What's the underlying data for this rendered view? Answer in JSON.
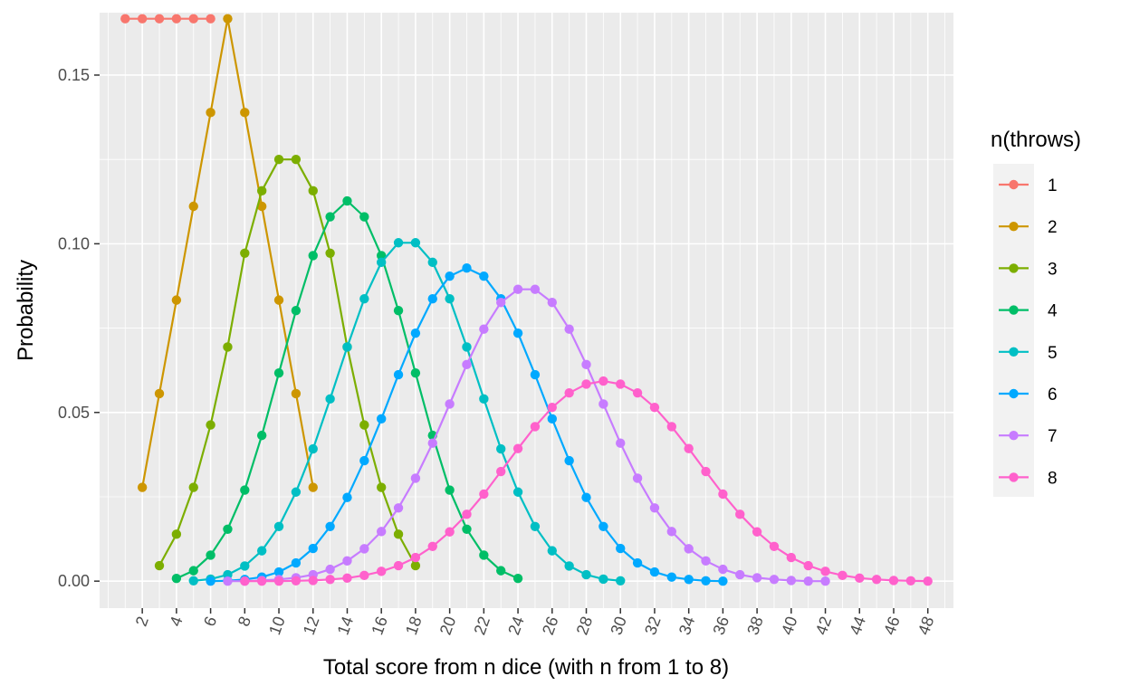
{
  "chart_data": {
    "type": "line",
    "title": "",
    "xlabel": "Total score from n dice (with n from 1 to 8)",
    "ylabel": "Probability",
    "xlim": [
      -0.5,
      49.5
    ],
    "ylim": [
      -0.008,
      0.1685
    ],
    "x_ticks": [
      2,
      4,
      6,
      8,
      10,
      12,
      14,
      16,
      18,
      20,
      22,
      24,
      26,
      28,
      30,
      32,
      34,
      36,
      38,
      40,
      42,
      44,
      46,
      48
    ],
    "y_ticks": [
      0.0,
      0.05,
      0.1,
      0.15
    ],
    "y_tick_labels": [
      "0.00",
      "0.05",
      "0.10",
      "0.15"
    ],
    "grid": true,
    "background": "#EBEBEB",
    "legend": {
      "title": "n(throws)",
      "position": "right"
    },
    "series": [
      {
        "name": "1",
        "color": "#F8766D",
        "x": [
          1,
          2,
          3,
          4,
          5,
          6
        ],
        "y": [
          0.1667,
          0.1667,
          0.1667,
          0.1667,
          0.1667,
          0.1667
        ]
      },
      {
        "name": "2",
        "color": "#CD9600",
        "x": [
          2,
          3,
          4,
          5,
          6,
          7,
          8,
          9,
          10,
          11,
          12
        ],
        "y": [
          0.0278,
          0.0556,
          0.0833,
          0.1111,
          0.1389,
          0.1667,
          0.1389,
          0.1111,
          0.0833,
          0.0556,
          0.0278
        ]
      },
      {
        "name": "3",
        "color": "#7CAE00",
        "x": [
          3,
          4,
          5,
          6,
          7,
          8,
          9,
          10,
          11,
          12,
          13,
          14,
          15,
          16,
          17,
          18
        ],
        "y": [
          0.0046,
          0.0139,
          0.0278,
          0.0463,
          0.0694,
          0.0972,
          0.1157,
          0.125,
          0.125,
          0.1157,
          0.0972,
          0.0694,
          0.0463,
          0.0278,
          0.0139,
          0.0046
        ]
      },
      {
        "name": "4",
        "color": "#00BE67",
        "x": [
          4,
          5,
          6,
          7,
          8,
          9,
          10,
          11,
          12,
          13,
          14,
          15,
          16,
          17,
          18,
          19,
          20,
          21,
          22,
          23,
          24
        ],
        "y": [
          0.0008,
          0.0031,
          0.0077,
          0.0154,
          0.027,
          0.0432,
          0.0617,
          0.0802,
          0.0965,
          0.108,
          0.1127,
          0.108,
          0.0965,
          0.0802,
          0.0617,
          0.0432,
          0.027,
          0.0154,
          0.0077,
          0.0031,
          0.0008
        ]
      },
      {
        "name": "5",
        "color": "#00BFC4",
        "x": [
          5,
          6,
          7,
          8,
          9,
          10,
          11,
          12,
          13,
          14,
          15,
          16,
          17,
          18,
          19,
          20,
          21,
          22,
          23,
          24,
          25,
          26,
          27,
          28,
          29,
          30
        ],
        "y": [
          0.0001,
          0.0006,
          0.0019,
          0.0045,
          0.009,
          0.0162,
          0.0264,
          0.0392,
          0.054,
          0.0694,
          0.0837,
          0.0945,
          0.1003,
          0.1003,
          0.0945,
          0.0837,
          0.0694,
          0.054,
          0.0392,
          0.0264,
          0.0162,
          0.009,
          0.0045,
          0.0019,
          0.0006,
          0.0001
        ]
      },
      {
        "name": "6",
        "color": "#00A9FF",
        "x": [
          6,
          7,
          8,
          9,
          10,
          11,
          12,
          13,
          14,
          15,
          16,
          17,
          18,
          19,
          20,
          21,
          22,
          23,
          24,
          25,
          26,
          27,
          28,
          29,
          30,
          31,
          32,
          33,
          34,
          35,
          36
        ],
        "y": [
          0.0,
          0.0001,
          0.0005,
          0.0012,
          0.0027,
          0.0054,
          0.0097,
          0.0162,
          0.0248,
          0.0357,
          0.0481,
          0.0612,
          0.0735,
          0.0837,
          0.0904,
          0.0928,
          0.0904,
          0.0837,
          0.0735,
          0.0612,
          0.0481,
          0.0357,
          0.0248,
          0.0162,
          0.0097,
          0.0054,
          0.0027,
          0.0012,
          0.0005,
          0.0001,
          0.0
        ]
      },
      {
        "name": "7",
        "color": "#C77CFF",
        "x": [
          7,
          8,
          9,
          10,
          11,
          12,
          13,
          14,
          15,
          16,
          17,
          18,
          19,
          20,
          21,
          22,
          23,
          24,
          25,
          26,
          27,
          28,
          29,
          30,
          31,
          32,
          33,
          34,
          35,
          36,
          37,
          38,
          39,
          40,
          41,
          42
        ],
        "y": [
          0.0,
          0.0,
          0.0002,
          0.0005,
          0.001,
          0.0019,
          0.0035,
          0.006,
          0.0096,
          0.0147,
          0.0217,
          0.0305,
          0.0409,
          0.0525,
          0.0642,
          0.0747,
          0.0826,
          0.0865,
          0.0865,
          0.0826,
          0.0747,
          0.0642,
          0.0525,
          0.0409,
          0.0305,
          0.0217,
          0.0147,
          0.0096,
          0.006,
          0.0035,
          0.0019,
          0.001,
          0.0005,
          0.0002,
          0.0,
          0.0
        ]
      },
      {
        "name": "8",
        "color": "#FF61CC",
        "x": [
          8,
          9,
          10,
          11,
          12,
          13,
          14,
          15,
          16,
          17,
          18,
          19,
          20,
          21,
          22,
          23,
          24,
          25,
          26,
          27,
          28,
          29,
          30,
          31,
          32,
          33,
          34,
          35,
          36,
          37,
          38,
          39,
          40,
          41,
          42,
          43,
          44,
          45,
          46,
          47,
          48
        ],
        "y": [
          0.0,
          0.0,
          0.0,
          0.0001,
          0.0002,
          0.0005,
          0.0009,
          0.0017,
          0.0029,
          0.0046,
          0.007,
          0.0103,
          0.0146,
          0.0198,
          0.0258,
          0.0325,
          0.0393,
          0.0458,
          0.0515,
          0.0558,
          0.0584,
          0.0593,
          0.0584,
          0.0558,
          0.0515,
          0.0458,
          0.0393,
          0.0325,
          0.0258,
          0.0198,
          0.0146,
          0.0103,
          0.007,
          0.0046,
          0.0029,
          0.0017,
          0.0009,
          0.0005,
          0.0002,
          0.0001,
          0.0
        ]
      }
    ]
  }
}
